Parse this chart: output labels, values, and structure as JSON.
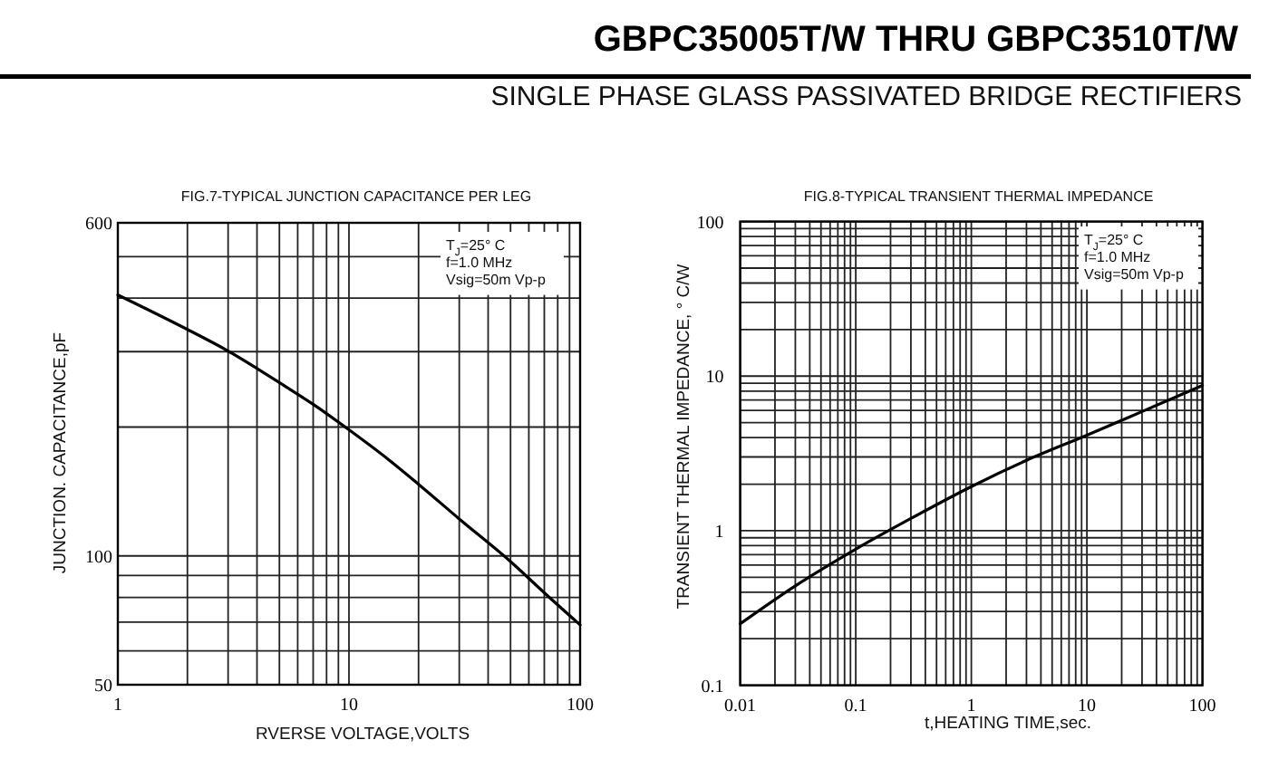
{
  "chart_data": [
    {
      "type": "other",
      "title": "GBPC35005T/W THRU GBPC3510T/W",
      "subtitle": "SINGLE PHASE GLASS PASSIVATED BRIDGE RECTIFIERS"
    },
    {
      "type": "line",
      "title": "FIG.7-TYPICAL JUNCTION CAPACITANCE PER LEG",
      "xlabel": "RVERSE VOLTAGE,VOLTS",
      "ylabel": "JUNCTION. CAPACITANCE,pF",
      "log": "xy",
      "grid": true,
      "xlim": [
        1,
        100
      ],
      "ylim": [
        50,
        600
      ],
      "xticks": [
        1,
        {
          "value": 2,
          "label": null
        },
        {
          "value": 3,
          "label": null
        },
        {
          "value": 4,
          "label": null
        },
        {
          "value": 5,
          "label": null
        },
        {
          "value": 6,
          "label": null
        },
        {
          "value": 7,
          "label": null
        },
        {
          "value": 8,
          "label": null
        },
        {
          "value": 9,
          "label": null
        },
        10,
        {
          "value": 20,
          "label": null
        },
        {
          "value": 30,
          "label": null
        },
        {
          "value": 40,
          "label": null
        },
        {
          "value": 50,
          "label": null
        },
        {
          "value": 60,
          "label": null
        },
        {
          "value": 70,
          "label": null
        },
        {
          "value": 80,
          "label": null
        },
        {
          "value": 90,
          "label": null
        },
        100
      ],
      "yticks": [
        50,
        {
          "value": 60,
          "label": null
        },
        {
          "value": 70,
          "label": null
        },
        {
          "value": 80,
          "label": null
        },
        {
          "value": 90,
          "label": null
        },
        100,
        {
          "value": 200,
          "label": null
        },
        {
          "value": 300,
          "label": null
        },
        {
          "value": 400,
          "label": null
        },
        {
          "value": 500,
          "label": null
        },
        600
      ],
      "x": [
        1,
        2,
        3,
        4,
        5,
        7,
        10,
        15,
        20,
        30,
        50,
        70,
        100
      ],
      "values": [
        407,
        338,
        301,
        274,
        254,
        226,
        197,
        167,
        147,
        122,
        97,
        82,
        69
      ],
      "color": "#000000",
      "annotations": [
        "T$_{J}$=25° C",
        "f=1.0 MHz",
        "Vsig=50m Vp-p"
      ]
    },
    {
      "type": "line",
      "title": "FIG.8-TYPICAL TRANSIENT THERMAL IMPEDANCE",
      "xlabel": "t,HEATING TIME,sec.",
      "ylabel": "TRANSIENT THERMAL IMPEDANCE, ° C/W",
      "log": "xy",
      "grid": true,
      "xlim": [
        0.01,
        100
      ],
      "ylim": [
        0.1,
        100
      ],
      "xticks": [
        0.01,
        {
          "value": 0.02,
          "label": null
        },
        {
          "value": 0.03,
          "label": null
        },
        {
          "value": 0.04,
          "label": null
        },
        {
          "value": 0.05,
          "label": null
        },
        {
          "value": 0.06,
          "label": null
        },
        {
          "value": 0.07,
          "label": null
        },
        {
          "value": 0.08,
          "label": null
        },
        {
          "value": 0.09,
          "label": null
        },
        0.1,
        {
          "value": 0.2,
          "label": null
        },
        {
          "value": 0.3,
          "label": null
        },
        {
          "value": 0.4,
          "label": null
        },
        {
          "value": 0.5,
          "label": null
        },
        {
          "value": 0.6,
          "label": null
        },
        {
          "value": 0.7,
          "label": null
        },
        {
          "value": 0.8,
          "label": null
        },
        {
          "value": 0.9,
          "label": null
        },
        1,
        {
          "value": 2,
          "label": null
        },
        {
          "value": 3,
          "label": null
        },
        {
          "value": 4,
          "label": null
        },
        {
          "value": 5,
          "label": null
        },
        {
          "value": 6,
          "label": null
        },
        {
          "value": 7,
          "label": null
        },
        {
          "value": 8,
          "label": null
        },
        {
          "value": 9,
          "label": null
        },
        10,
        {
          "value": 20,
          "label": null
        },
        {
          "value": 30,
          "label": null
        },
        {
          "value": 40,
          "label": null
        },
        {
          "value": 50,
          "label": null
        },
        {
          "value": 60,
          "label": null
        },
        {
          "value": 70,
          "label": null
        },
        {
          "value": 80,
          "label": null
        },
        {
          "value": 90,
          "label": null
        },
        100
      ],
      "yticks": [
        0.1,
        {
          "value": 0.2,
          "label": null
        },
        {
          "value": 0.3,
          "label": null
        },
        {
          "value": 0.4,
          "label": null
        },
        {
          "value": 0.5,
          "label": null
        },
        {
          "value": 0.6,
          "label": null
        },
        {
          "value": 0.7,
          "label": null
        },
        {
          "value": 0.8,
          "label": null
        },
        {
          "value": 0.9,
          "label": null
        },
        1,
        {
          "value": 2,
          "label": null
        },
        {
          "value": 3,
          "label": null
        },
        {
          "value": 4,
          "label": null
        },
        {
          "value": 5,
          "label": null
        },
        {
          "value": 6,
          "label": null
        },
        {
          "value": 7,
          "label": null
        },
        {
          "value": 8,
          "label": null
        },
        {
          "value": 9,
          "label": null
        },
        10,
        {
          "value": 20,
          "label": null
        },
        {
          "value": 30,
          "label": null
        },
        {
          "value": 40,
          "label": null
        },
        {
          "value": 50,
          "label": null
        },
        {
          "value": 60,
          "label": null
        },
        {
          "value": 70,
          "label": null
        },
        {
          "value": 80,
          "label": null
        },
        {
          "value": 90,
          "label": null
        },
        100
      ],
      "x": [
        0.01,
        0.03,
        0.1,
        0.3,
        1,
        3,
        10,
        30,
        100
      ],
      "values": [
        0.25,
        0.44,
        0.76,
        1.2,
        1.93,
        2.85,
        4.15,
        5.9,
        8.7
      ],
      "color": "#000000",
      "annotations": [
        "T$_{J}$=25° C",
        "f=1.0 MHz",
        "Vsig=50m Vp-p"
      ]
    }
  ]
}
